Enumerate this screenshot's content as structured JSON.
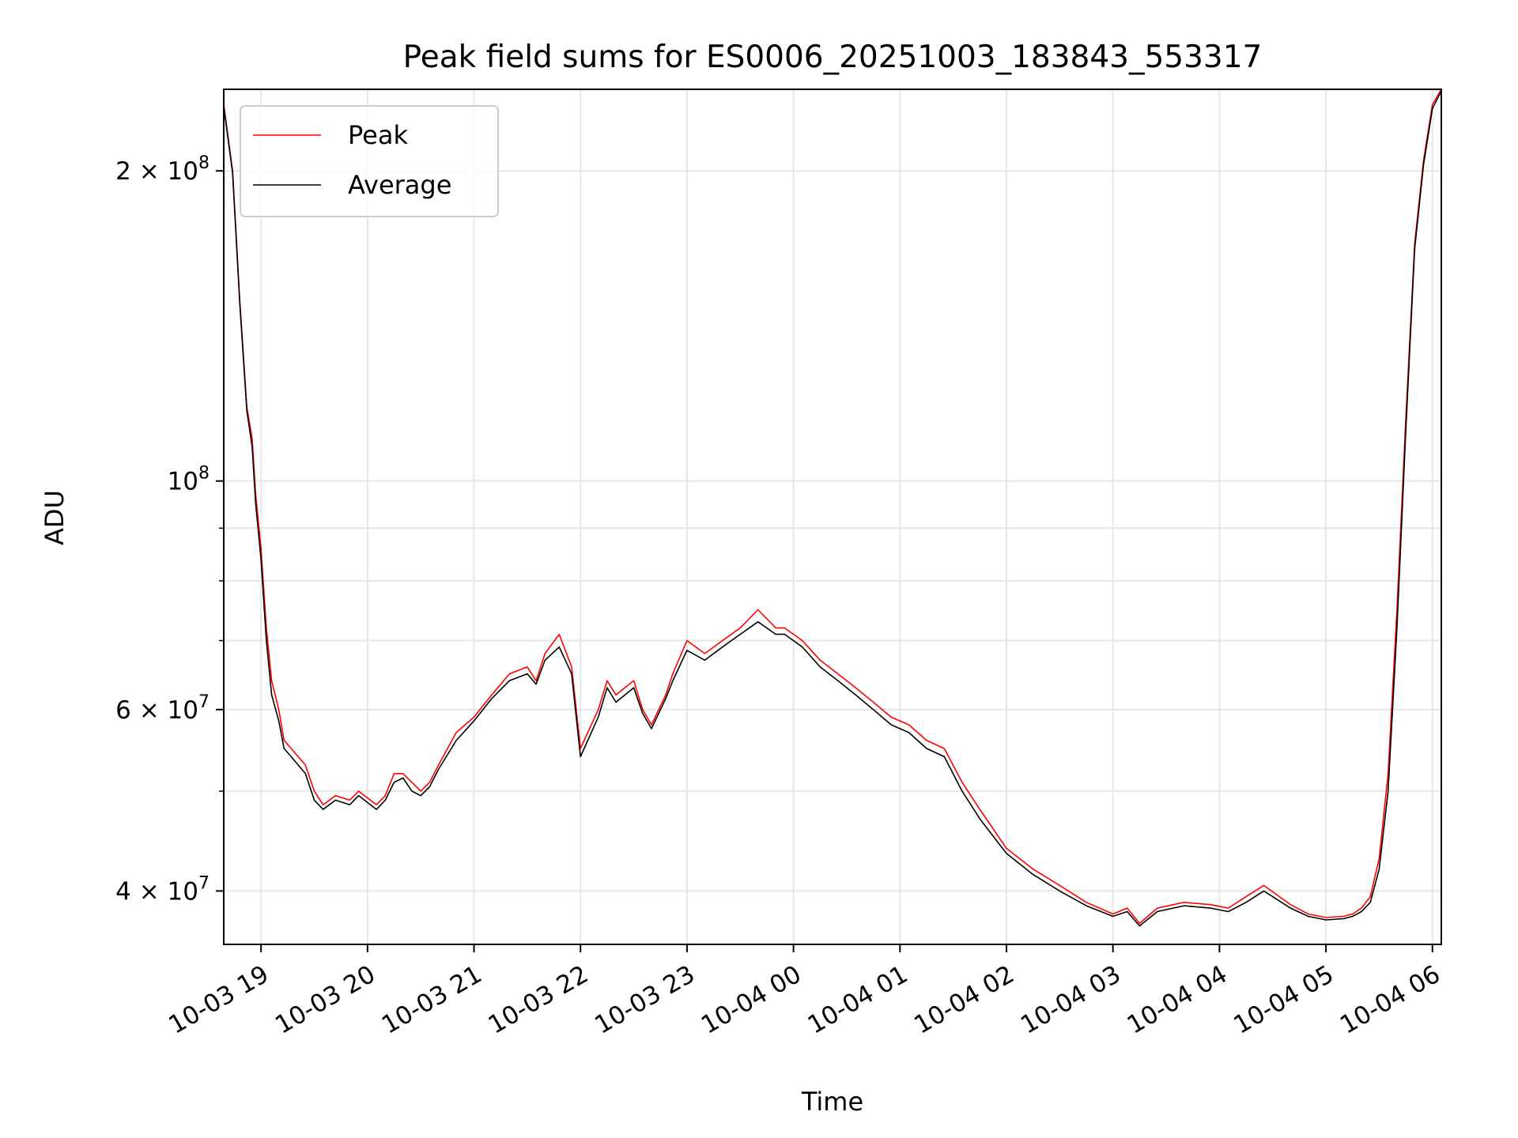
{
  "chart_data": {
    "type": "line",
    "title": "Peak field sums for ES0006_20251003_183843_553317",
    "xlabel": "Time",
    "ylabel": "ADU",
    "yscale": "log",
    "grid": true,
    "legend_placement": "top-left",
    "xlim": [
      "2025-10-03 18:39",
      "2025-10-04 06:05"
    ],
    "ylim": [
      35500000,
      240000000
    ],
    "x_ticks": [
      {
        "value": "2025-10-03 19:00",
        "label": "10-03 19"
      },
      {
        "value": "2025-10-03 20:00",
        "label": "10-03 20"
      },
      {
        "value": "2025-10-03 21:00",
        "label": "10-03 21"
      },
      {
        "value": "2025-10-03 22:00",
        "label": "10-03 22"
      },
      {
        "value": "2025-10-03 23:00",
        "label": "10-03 23"
      },
      {
        "value": "2025-10-04 00:00",
        "label": "10-04 00"
      },
      {
        "value": "2025-10-04 01:00",
        "label": "10-04 01"
      },
      {
        "value": "2025-10-04 02:00",
        "label": "10-04 02"
      },
      {
        "value": "2025-10-04 03:00",
        "label": "10-04 03"
      },
      {
        "value": "2025-10-04 04:00",
        "label": "10-04 04"
      },
      {
        "value": "2025-10-04 05:00",
        "label": "10-04 05"
      },
      {
        "value": "2025-10-04 06:00",
        "label": "10-04 06"
      }
    ],
    "y_major_ticks": [
      {
        "value": 40000000,
        "mantissa": "4",
        "base": "10",
        "exp": "7"
      },
      {
        "value": 60000000,
        "mantissa": "6",
        "base": "10",
        "exp": "7"
      },
      {
        "value": 100000000,
        "mantissa": "",
        "base": "10",
        "exp": "8"
      },
      {
        "value": 200000000,
        "mantissa": "2",
        "base": "10",
        "exp": "8"
      }
    ],
    "y_minor_ticks": [
      50000000,
      70000000,
      80000000,
      90000000
    ],
    "series": [
      {
        "name": "Peak",
        "color": "#ff0000",
        "x": [
          "2025-10-03 18:39",
          "2025-10-03 18:44",
          "2025-10-03 18:48",
          "2025-10-03 18:52",
          "2025-10-03 18:55",
          "2025-10-03 18:57",
          "2025-10-03 19:00",
          "2025-10-03 19:03",
          "2025-10-03 19:06",
          "2025-10-03 19:10",
          "2025-10-03 19:13",
          "2025-10-03 19:17",
          "2025-10-03 19:25",
          "2025-10-03 19:30",
          "2025-10-03 19:35",
          "2025-10-03 19:42",
          "2025-10-03 19:50",
          "2025-10-03 19:55",
          "2025-10-03 20:05",
          "2025-10-03 20:10",
          "2025-10-03 20:15",
          "2025-10-03 20:20",
          "2025-10-03 20:25",
          "2025-10-03 20:30",
          "2025-10-03 20:35",
          "2025-10-03 20:40",
          "2025-10-03 20:50",
          "2025-10-03 21:00",
          "2025-10-03 21:10",
          "2025-10-03 21:20",
          "2025-10-03 21:30",
          "2025-10-03 21:35",
          "2025-10-03 21:40",
          "2025-10-03 21:48",
          "2025-10-03 21:55",
          "2025-10-03 22:00",
          "2025-10-03 22:10",
          "2025-10-03 22:15",
          "2025-10-03 22:20",
          "2025-10-03 22:30",
          "2025-10-03 22:35",
          "2025-10-03 22:40",
          "2025-10-03 22:48",
          "2025-10-03 22:52",
          "2025-10-03 23:00",
          "2025-10-03 23:10",
          "2025-10-03 23:20",
          "2025-10-03 23:25",
          "2025-10-03 23:30",
          "2025-10-03 23:40",
          "2025-10-03 23:50",
          "2025-10-03 23:55",
          "2025-10-04 00:05",
          "2025-10-04 00:15",
          "2025-10-04 00:25",
          "2025-10-04 00:35",
          "2025-10-04 00:45",
          "2025-10-04 00:55",
          "2025-10-04 01:05",
          "2025-10-04 01:15",
          "2025-10-04 01:25",
          "2025-10-04 01:35",
          "2025-10-04 01:45",
          "2025-10-04 02:00",
          "2025-10-04 02:15",
          "2025-10-04 02:30",
          "2025-10-04 02:45",
          "2025-10-04 03:00",
          "2025-10-04 03:08",
          "2025-10-04 03:15",
          "2025-10-04 03:25",
          "2025-10-04 03:40",
          "2025-10-04 03:55",
          "2025-10-04 04:05",
          "2025-10-04 04:15",
          "2025-10-04 04:25",
          "2025-10-04 04:40",
          "2025-10-04 04:50",
          "2025-10-04 05:00",
          "2025-10-04 05:10",
          "2025-10-04 05:15",
          "2025-10-04 05:20",
          "2025-10-04 05:25",
          "2025-10-04 05:30",
          "2025-10-04 05:35",
          "2025-10-04 05:40",
          "2025-10-04 05:45",
          "2025-10-04 05:50",
          "2025-10-04 05:55",
          "2025-10-04 06:00",
          "2025-10-04 06:05"
        ],
        "values": [
          232000000,
          200000000,
          150000000,
          118000000,
          110000000,
          97000000,
          86000000,
          72000000,
          64000000,
          60000000,
          56000000,
          55000000,
          53000000,
          50000000,
          48500000,
          49500000,
          49000000,
          50000000,
          48500000,
          49500000,
          52000000,
          52000000,
          51000000,
          50000000,
          51000000,
          53000000,
          57000000,
          59000000,
          62000000,
          65000000,
          66000000,
          64000000,
          68000000,
          71000000,
          66000000,
          55000000,
          60000000,
          64000000,
          62000000,
          64000000,
          60000000,
          58000000,
          62000000,
          65000000,
          70000000,
          68000000,
          70000000,
          71000000,
          72000000,
          75000000,
          72000000,
          72000000,
          70000000,
          67000000,
          65000000,
          63000000,
          61000000,
          59000000,
          58000000,
          56000000,
          55000000,
          51000000,
          48000000,
          44000000,
          42000000,
          40500000,
          39000000,
          38000000,
          38500000,
          37200000,
          38500000,
          39000000,
          38800000,
          38500000,
          39500000,
          40500000,
          38800000,
          38000000,
          37700000,
          37800000,
          38000000,
          38500000,
          39500000,
          43000000,
          52000000,
          75000000,
          115000000,
          170000000,
          205000000,
          232000000,
          240000000
        ]
      },
      {
        "name": "Average",
        "color": "#000000",
        "x": [
          "2025-10-03 18:39",
          "2025-10-03 18:44",
          "2025-10-03 18:48",
          "2025-10-03 18:52",
          "2025-10-03 18:55",
          "2025-10-03 18:57",
          "2025-10-03 19:00",
          "2025-10-03 19:03",
          "2025-10-03 19:06",
          "2025-10-03 19:10",
          "2025-10-03 19:13",
          "2025-10-03 19:17",
          "2025-10-03 19:25",
          "2025-10-03 19:30",
          "2025-10-03 19:35",
          "2025-10-03 19:42",
          "2025-10-03 19:50",
          "2025-10-03 19:55",
          "2025-10-03 20:05",
          "2025-10-03 20:10",
          "2025-10-03 20:15",
          "2025-10-03 20:20",
          "2025-10-03 20:25",
          "2025-10-03 20:30",
          "2025-10-03 20:35",
          "2025-10-03 20:40",
          "2025-10-03 20:50",
          "2025-10-03 21:00",
          "2025-10-03 21:10",
          "2025-10-03 21:20",
          "2025-10-03 21:30",
          "2025-10-03 21:35",
          "2025-10-03 21:40",
          "2025-10-03 21:48",
          "2025-10-03 21:55",
          "2025-10-03 22:00",
          "2025-10-03 22:10",
          "2025-10-03 22:15",
          "2025-10-03 22:20",
          "2025-10-03 22:30",
          "2025-10-03 22:35",
          "2025-10-03 22:40",
          "2025-10-03 22:48",
          "2025-10-03 22:52",
          "2025-10-03 23:00",
          "2025-10-03 23:10",
          "2025-10-03 23:20",
          "2025-10-03 23:25",
          "2025-10-03 23:30",
          "2025-10-03 23:40",
          "2025-10-03 23:50",
          "2025-10-03 23:55",
          "2025-10-04 00:05",
          "2025-10-04 00:15",
          "2025-10-04 00:25",
          "2025-10-04 00:35",
          "2025-10-04 00:45",
          "2025-10-04 00:55",
          "2025-10-04 01:05",
          "2025-10-04 01:15",
          "2025-10-04 01:25",
          "2025-10-04 01:35",
          "2025-10-04 01:45",
          "2025-10-04 02:00",
          "2025-10-04 02:15",
          "2025-10-04 02:30",
          "2025-10-04 02:45",
          "2025-10-04 03:00",
          "2025-10-04 03:08",
          "2025-10-04 03:15",
          "2025-10-04 03:25",
          "2025-10-04 03:40",
          "2025-10-04 03:55",
          "2025-10-04 04:05",
          "2025-10-04 04:15",
          "2025-10-04 04:25",
          "2025-10-04 04:40",
          "2025-10-04 04:50",
          "2025-10-04 05:00",
          "2025-10-04 05:10",
          "2025-10-04 05:15",
          "2025-10-04 05:20",
          "2025-10-04 05:25",
          "2025-10-04 05:30",
          "2025-10-04 05:35",
          "2025-10-04 05:40",
          "2025-10-04 05:45",
          "2025-10-04 05:50",
          "2025-10-04 05:55",
          "2025-10-04 06:00",
          "2025-10-04 06:05"
        ],
        "values": [
          231000000,
          199000000,
          149000000,
          117000000,
          108000000,
          95000000,
          84000000,
          70000000,
          62000000,
          58500000,
          55000000,
          54000000,
          52000000,
          49000000,
          48000000,
          49000000,
          48500000,
          49500000,
          48000000,
          49000000,
          51000000,
          51500000,
          50000000,
          49500000,
          50500000,
          52500000,
          56000000,
          58500000,
          61500000,
          64000000,
          65000000,
          63500000,
          67000000,
          69000000,
          65000000,
          54000000,
          59000000,
          63000000,
          61000000,
          63000000,
          59500000,
          57500000,
          61500000,
          64000000,
          68500000,
          67000000,
          69000000,
          70000000,
          71000000,
          73000000,
          71000000,
          71000000,
          69000000,
          66000000,
          64000000,
          62000000,
          60000000,
          58000000,
          57000000,
          55000000,
          54000000,
          50000000,
          47000000,
          43500000,
          41500000,
          40000000,
          38700000,
          37800000,
          38200000,
          37000000,
          38200000,
          38700000,
          38500000,
          38200000,
          39000000,
          40000000,
          38500000,
          37800000,
          37500000,
          37600000,
          37800000,
          38200000,
          39000000,
          42000000,
          50000000,
          72000000,
          112000000,
          168000000,
          203000000,
          230000000,
          239000000
        ]
      }
    ]
  }
}
